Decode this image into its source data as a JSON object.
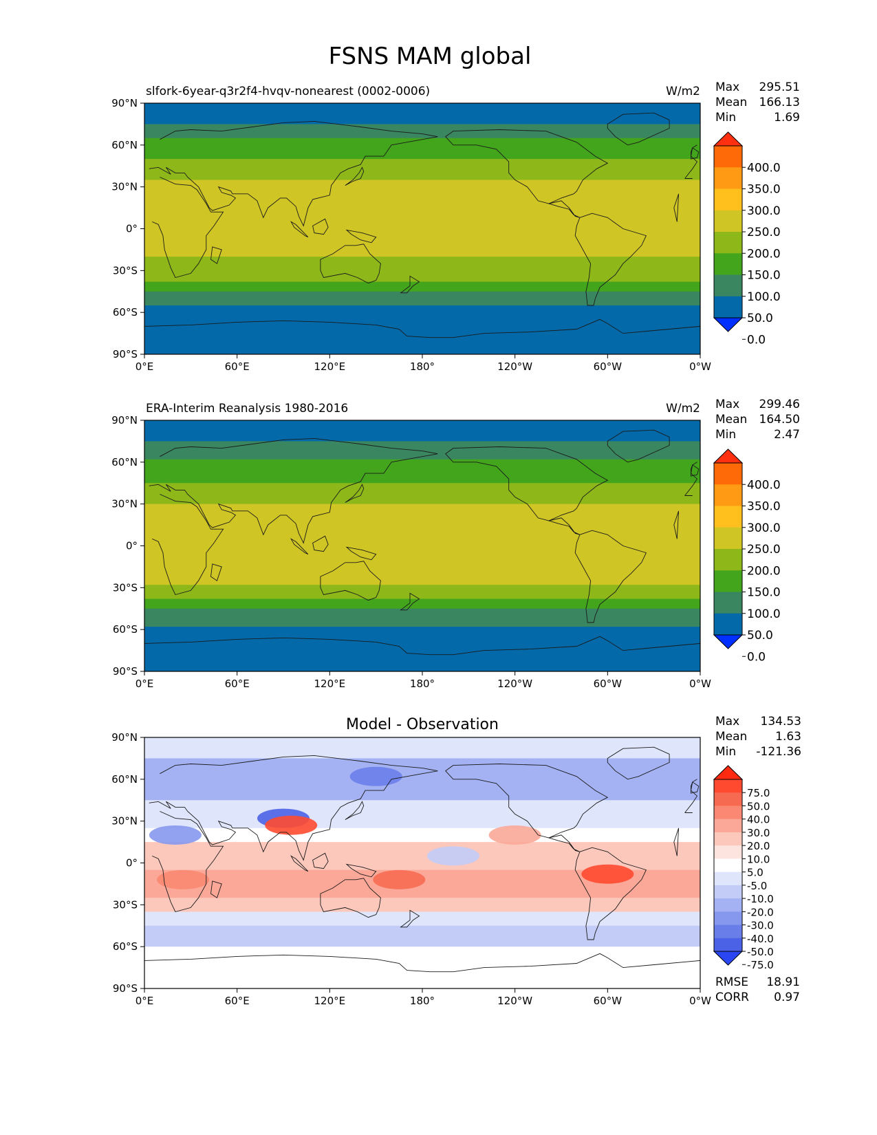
{
  "figure": {
    "title": "FSNS MAM global"
  },
  "chart_data": [
    {
      "type": "heatmap",
      "name": "test",
      "title": "slfork-6year-q3r2f4-hvqv-nonearest (0002-0006)",
      "units": "W/m2",
      "stats": {
        "max_label": "Max",
        "max": "295.51",
        "mean_label": "Mean",
        "mean": "166.13",
        "min_label": "Min",
        "min": "1.69"
      },
      "xticks": [
        "0°E",
        "60°E",
        "120°E",
        "180°",
        "120°W",
        "60°W",
        "0°W"
      ],
      "yticks": [
        "90°N",
        "60°N",
        "30°N",
        "0°",
        "30°S",
        "60°S",
        "90°S"
      ],
      "xlim": [
        0,
        360
      ],
      "ylim": [
        -90,
        90
      ],
      "colorbar": {
        "labels": [
          "400.0",
          "350.0",
          "300.0",
          "250.0",
          "200.0",
          "150.0",
          "100.0",
          "50.0",
          "0.0"
        ],
        "colors": [
          "#ff3010",
          "#ff6a08",
          "#ff9a14",
          "#ffc01e",
          "#cfc525",
          "#8eb81a",
          "#42a51c",
          "#3a8660",
          "#0369a8",
          "#0030ff"
        ]
      },
      "zonal_bands": [
        {
          "lat": [
            75,
            90
          ],
          "value": 30
        },
        {
          "lat": [
            65,
            75
          ],
          "value": 85
        },
        {
          "lat": [
            50,
            65
          ],
          "value": 130
        },
        {
          "lat": [
            35,
            50
          ],
          "value": 170
        },
        {
          "lat": [
            20,
            35
          ],
          "value": 210
        },
        {
          "lat": [
            0,
            20
          ],
          "value": 240
        },
        {
          "lat": [
            -20,
            0
          ],
          "value": 225
        },
        {
          "lat": [
            -30,
            -20
          ],
          "value": 190
        },
        {
          "lat": [
            -38,
            -30
          ],
          "value": 160
        },
        {
          "lat": [
            -45,
            -38
          ],
          "value": 130
        },
        {
          "lat": [
            -55,
            -45
          ],
          "value": 90
        },
        {
          "lat": [
            -90,
            -55
          ],
          "value": 30
        }
      ]
    },
    {
      "type": "heatmap",
      "name": "reference",
      "title": "ERA-Interim Reanalysis 1980-2016",
      "units": "W/m2",
      "stats": {
        "max_label": "Max",
        "max": "299.46",
        "mean_label": "Mean",
        "mean": "164.50",
        "min_label": "Min",
        "min": "2.47"
      },
      "xticks": [
        "0°E",
        "60°E",
        "120°E",
        "180°",
        "120°W",
        "60°W",
        "0°W"
      ],
      "yticks": [
        "90°N",
        "60°N",
        "30°N",
        "0°",
        "30°S",
        "60°S",
        "90°S"
      ],
      "xlim": [
        0,
        360
      ],
      "ylim": [
        -90,
        90
      ],
      "colorbar": {
        "labels": [
          "400.0",
          "350.0",
          "300.0",
          "250.0",
          "200.0",
          "150.0",
          "100.0",
          "50.0",
          "0.0"
        ],
        "colors": [
          "#ff3010",
          "#ff6a08",
          "#ff9a14",
          "#ffc01e",
          "#cfc525",
          "#8eb81a",
          "#42a51c",
          "#3a8660",
          "#0369a8",
          "#0030ff"
        ]
      },
      "zonal_bands": [
        {
          "lat": [
            75,
            90
          ],
          "value": 30
        },
        {
          "lat": [
            62,
            75
          ],
          "value": 90
        },
        {
          "lat": [
            45,
            62
          ],
          "value": 140
        },
        {
          "lat": [
            30,
            45
          ],
          "value": 180
        },
        {
          "lat": [
            10,
            30
          ],
          "value": 220
        },
        {
          "lat": [
            -5,
            10
          ],
          "value": 210
        },
        {
          "lat": [
            -28,
            -5
          ],
          "value": 215
        },
        {
          "lat": [
            -38,
            -28
          ],
          "value": 175
        },
        {
          "lat": [
            -45,
            -38
          ],
          "value": 130
        },
        {
          "lat": [
            -58,
            -45
          ],
          "value": 80
        },
        {
          "lat": [
            -90,
            -58
          ],
          "value": 30
        }
      ]
    },
    {
      "type": "heatmap",
      "name": "difference",
      "title": "Model - Observation",
      "stats": {
        "max_label": "Max",
        "max": "134.53",
        "mean_label": "Mean",
        "mean": "1.63",
        "min_label": "Min",
        "min": "-121.36"
      },
      "extra_stats": {
        "rmse_label": "RMSE",
        "rmse": "18.91",
        "corr_label": "CORR",
        "corr": "0.97"
      },
      "xticks": [
        "0°E",
        "60°E",
        "120°E",
        "180°",
        "120°W",
        "60°W",
        "0°W"
      ],
      "yticks": [
        "90°N",
        "60°N",
        "30°N",
        "0°",
        "30°S",
        "60°S",
        "90°S"
      ],
      "xlim": [
        0,
        360
      ],
      "ylim": [
        -90,
        90
      ],
      "colorbar": {
        "labels": [
          "75.0",
          "50.0",
          "40.0",
          "30.0",
          "20.0",
          "10.0",
          "5.0",
          "-5.0",
          "-10.0",
          "-20.0",
          "-30.0",
          "-40.0",
          "-50.0",
          "-75.0"
        ],
        "colors": [
          "#ff2a10",
          "#ff4a30",
          "#f76a52",
          "#fa8872",
          "#fba898",
          "#fcc8bc",
          "#fde4de",
          "#ffffff",
          "#dfe5fb",
          "#c2ccf7",
          "#a4b2f3",
          "#8698ee",
          "#6a7eea",
          "#4c62e6",
          "#2a46f2"
        ]
      },
      "zonal_bands": [
        {
          "lat": [
            75,
            90
          ],
          "value": -8
        },
        {
          "lat": [
            45,
            75
          ],
          "value": -25
        },
        {
          "lat": [
            25,
            45
          ],
          "value": -6
        },
        {
          "lat": [
            15,
            25
          ],
          "value": 0
        },
        {
          "lat": [
            -5,
            15
          ],
          "value": 15
        },
        {
          "lat": [
            -25,
            -5
          ],
          "value": 22
        },
        {
          "lat": [
            -35,
            -25
          ],
          "value": 12
        },
        {
          "lat": [
            -45,
            -35
          ],
          "value": -8
        },
        {
          "lat": [
            -60,
            -45
          ],
          "value": -12
        },
        {
          "lat": [
            -90,
            -60
          ],
          "value": 0
        }
      ],
      "blobs": [
        {
          "lon": 90,
          "lat": 32,
          "value": -60
        },
        {
          "lon": 95,
          "lat": 27,
          "value": 55
        },
        {
          "lon": 300,
          "lat": -8,
          "value": 60
        },
        {
          "lon": 165,
          "lat": -12,
          "value": 45
        },
        {
          "lon": 150,
          "lat": 62,
          "value": -45
        },
        {
          "lon": 240,
          "lat": 20,
          "value": 28
        },
        {
          "lon": 20,
          "lat": 20,
          "value": -35
        },
        {
          "lon": 25,
          "lat": -12,
          "value": 30
        },
        {
          "lon": 200,
          "lat": 5,
          "value": -18
        }
      ]
    }
  ],
  "continents": [
    {
      "name": "north-america",
      "pts": [
        [
          200,
          70
        ],
        [
          230,
          71
        ],
        [
          260,
          70
        ],
        [
          280,
          62
        ],
        [
          292,
          52
        ],
        [
          300,
          47
        ],
        [
          293,
          43
        ],
        [
          284,
          35
        ],
        [
          280,
          27
        ],
        [
          278,
          25
        ],
        [
          270,
          22
        ],
        [
          262,
          18
        ],
        [
          255,
          20
        ],
        [
          248,
          30
        ],
        [
          240,
          35
        ],
        [
          236,
          40
        ],
        [
          236,
          48
        ],
        [
          228,
          57
        ],
        [
          215,
          60
        ],
        [
          200,
          60
        ],
        [
          195,
          66
        ]
      ]
    },
    {
      "name": "central-america",
      "pts": [
        [
          262,
          18
        ],
        [
          270,
          20
        ],
        [
          275,
          15
        ],
        [
          279,
          9
        ],
        [
          282,
          8
        ],
        [
          278,
          10
        ],
        [
          275,
          14
        ],
        [
          268,
          16
        ]
      ]
    },
    {
      "name": "south-america",
      "pts": [
        [
          282,
          8
        ],
        [
          290,
          11
        ],
        [
          300,
          8
        ],
        [
          310,
          0
        ],
        [
          325,
          -5
        ],
        [
          322,
          -12
        ],
        [
          315,
          -20
        ],
        [
          310,
          -25
        ],
        [
          305,
          -33
        ],
        [
          295,
          -42
        ],
        [
          292,
          -50
        ],
        [
          291,
          -55
        ],
        [
          287,
          -55
        ],
        [
          286,
          -45
        ],
        [
          288,
          -35
        ],
        [
          289,
          -25
        ],
        [
          284,
          -15
        ],
        [
          279,
          -5
        ],
        [
          280,
          2
        ]
      ]
    },
    {
      "name": "greenland",
      "pts": [
        [
          300,
          75
        ],
        [
          310,
          82
        ],
        [
          330,
          83
        ],
        [
          340,
          78
        ],
        [
          340,
          72
        ],
        [
          320,
          62
        ],
        [
          313,
          60
        ],
        [
          305,
          66
        ],
        [
          300,
          72
        ]
      ]
    },
    {
      "name": "europe-asia",
      "pts": [
        [
          350,
          36
        ],
        [
          355,
          43
        ],
        [
          358,
          48
        ],
        [
          354,
          52
        ],
        [
          355,
          58
        ],
        [
          358,
          60
        ],
        [
          10,
          64
        ],
        [
          20,
          70
        ],
        [
          30,
          71
        ],
        [
          50,
          70
        ],
        [
          70,
          73
        ],
        [
          90,
          76
        ],
        [
          110,
          77
        ],
        [
          140,
          73
        ],
        [
          160,
          70
        ],
        [
          180,
          68
        ],
        [
          190,
          66
        ],
        [
          180,
          64
        ],
        [
          160,
          60
        ],
        [
          155,
          52
        ],
        [
          143,
          52
        ],
        [
          140,
          46
        ],
        [
          132,
          43
        ],
        [
          127,
          40
        ],
        [
          121,
          31
        ],
        [
          120,
          24
        ],
        [
          109,
          21
        ],
        [
          106,
          15
        ],
        [
          103,
          2
        ],
        [
          100,
          9
        ],
        [
          98,
          16
        ],
        [
          92,
          22
        ],
        [
          88,
          22
        ],
        [
          80,
          15
        ],
        [
          77,
          8
        ],
        [
          73,
          20
        ],
        [
          67,
          25
        ],
        [
          57,
          25
        ],
        [
          56,
          27
        ],
        [
          48,
          30
        ],
        [
          50,
          26
        ],
        [
          56,
          24
        ],
        [
          59,
          22
        ],
        [
          55,
          17
        ],
        [
          44,
          13
        ],
        [
          42,
          15
        ],
        [
          35,
          30
        ],
        [
          28,
          37
        ],
        [
          26,
          40
        ],
        [
          20,
          40
        ],
        [
          14,
          44
        ],
        [
          17,
          39
        ],
        [
          9,
          44
        ],
        [
          3,
          43
        ],
        [
          -5,
          36
        ],
        [
          350,
          36
        ]
      ]
    },
    {
      "name": "africa",
      "pts": [
        [
          350,
          35
        ],
        [
          10,
          37
        ],
        [
          20,
          32
        ],
        [
          30,
          31
        ],
        [
          34,
          28
        ],
        [
          40,
          18
        ],
        [
          43,
          12
        ],
        [
          51,
          12
        ],
        [
          45,
          2
        ],
        [
          40,
          -5
        ],
        [
          40,
          -15
        ],
        [
          35,
          -25
        ],
        [
          30,
          -32
        ],
        [
          20,
          -35
        ],
        [
          17,
          -28
        ],
        [
          13,
          -15
        ],
        [
          12,
          -5
        ],
        [
          9,
          3
        ],
        [
          5,
          5
        ],
        [
          345,
          5
        ],
        [
          343,
          15
        ],
        [
          346,
          25
        ]
      ]
    },
    {
      "name": "australia",
      "pts": [
        [
          114,
          -22
        ],
        [
          122,
          -18
        ],
        [
          130,
          -12
        ],
        [
          137,
          -12
        ],
        [
          142,
          -11
        ],
        [
          146,
          -18
        ],
        [
          153,
          -25
        ],
        [
          152,
          -32
        ],
        [
          150,
          -37
        ],
        [
          145,
          -39
        ],
        [
          138,
          -35
        ],
        [
          130,
          -32
        ],
        [
          116,
          -35
        ],
        [
          114,
          -30
        ]
      ]
    },
    {
      "name": "antarctica",
      "pts": [
        [
          0,
          -70
        ],
        [
          30,
          -69
        ],
        [
          60,
          -67
        ],
        [
          90,
          -66
        ],
        [
          120,
          -67
        ],
        [
          150,
          -69
        ],
        [
          165,
          -72
        ],
        [
          170,
          -77
        ],
        [
          185,
          -78
        ],
        [
          200,
          -78
        ],
        [
          220,
          -75
        ],
        [
          250,
          -74
        ],
        [
          280,
          -72
        ],
        [
          295,
          -65
        ],
        [
          300,
          -68
        ],
        [
          310,
          -75
        ],
        [
          330,
          -73
        ],
        [
          360,
          -70
        ],
        [
          360,
          -90
        ],
        [
          0,
          -90
        ]
      ]
    },
    {
      "name": "borneo",
      "pts": [
        [
          109,
          2
        ],
        [
          117,
          7
        ],
        [
          119,
          1
        ],
        [
          116,
          -4
        ],
        [
          110,
          -3
        ]
      ]
    },
    {
      "name": "sumatra",
      "pts": [
        [
          95,
          5
        ],
        [
          98,
          3
        ],
        [
          106,
          -6
        ],
        [
          104,
          -5
        ],
        [
          97,
          1
        ]
      ]
    },
    {
      "name": "new-guinea",
      "pts": [
        [
          131,
          -1
        ],
        [
          141,
          -3
        ],
        [
          150,
          -6
        ],
        [
          147,
          -10
        ],
        [
          140,
          -8
        ],
        [
          134,
          -4
        ]
      ]
    },
    {
      "name": "madagascar",
      "pts": [
        [
          44,
          -13
        ],
        [
          50,
          -15
        ],
        [
          47,
          -25
        ],
        [
          43,
          -22
        ]
      ]
    },
    {
      "name": "japan",
      "pts": [
        [
          130,
          31
        ],
        [
          135,
          34
        ],
        [
          140,
          36
        ],
        [
          142,
          41
        ],
        [
          141,
          44
        ],
        [
          139,
          40
        ],
        [
          135,
          35
        ]
      ]
    },
    {
      "name": "uk",
      "pts": [
        [
          354,
          50
        ],
        [
          358,
          51
        ],
        [
          359,
          55
        ],
        [
          355,
          58
        ],
        [
          354,
          55
        ]
      ]
    },
    {
      "name": "new-zealand",
      "pts": [
        [
          172,
          -34
        ],
        [
          178,
          -38
        ],
        [
          174,
          -41
        ],
        [
          170,
          -46
        ],
        [
          166,
          -46
        ],
        [
          172,
          -41
        ]
      ]
    }
  ]
}
